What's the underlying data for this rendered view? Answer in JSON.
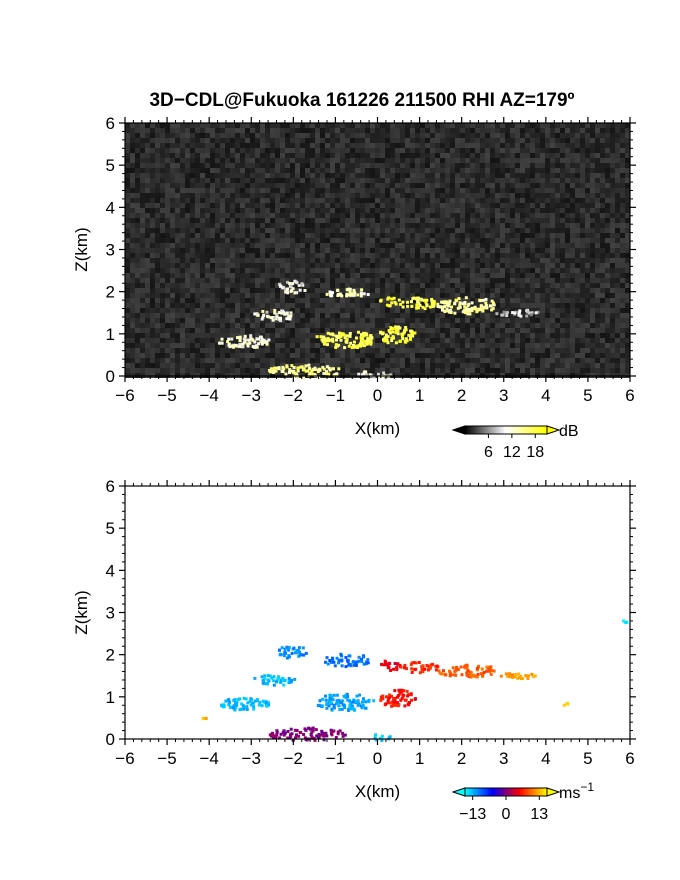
{
  "title": "3D−CDL@Fukuoka 161226 211500 RHI AZ=179º",
  "chart_data": [
    {
      "type": "heatmap",
      "name": "backscatter",
      "xlabel": "X(km)",
      "ylabel": "Z(km)",
      "xlim": [
        -6,
        6
      ],
      "ylim": [
        0,
        6
      ],
      "xticks": [
        "−6",
        "−5",
        "−4",
        "−3",
        "−2",
        "−1",
        "0",
        "1",
        "2",
        "3",
        "4",
        "5",
        "6"
      ],
      "yticks": [
        "0",
        "1",
        "2",
        "3",
        "4",
        "5",
        "6"
      ],
      "background_color": "#262626",
      "colorbar": {
        "unit": "dB",
        "ticks": [
          "6",
          "12",
          "18"
        ],
        "tick_values": [
          6,
          12,
          18
        ],
        "range": [
          0,
          21
        ],
        "colors": [
          "#000000",
          "#ffffff",
          "#ffff00"
        ]
      },
      "echoes": [
        {
          "x": [
            -2.4,
            -1.7
          ],
          "z": [
            2.0,
            2.3
          ],
          "level": 10
        },
        {
          "x": [
            -1.3,
            -0.2
          ],
          "z": [
            1.9,
            2.1
          ],
          "level": 13
        },
        {
          "x": [
            0.0,
            0.5
          ],
          "z": [
            1.7,
            1.9
          ],
          "level": 19
        },
        {
          "x": [
            0.5,
            1.4
          ],
          "z": [
            1.6,
            1.9
          ],
          "level": 17
        },
        {
          "x": [
            1.4,
            2.8
          ],
          "z": [
            1.5,
            1.9
          ],
          "level": 14
        },
        {
          "x": [
            2.8,
            3.8
          ],
          "z": [
            1.45,
            1.6
          ],
          "level": 8
        },
        {
          "x": [
            -3.0,
            -2.0
          ],
          "z": [
            1.3,
            1.6
          ],
          "level": 11
        },
        {
          "x": [
            -3.8,
            -2.6
          ],
          "z": [
            0.7,
            1.0
          ],
          "level": 12
        },
        {
          "x": [
            -1.5,
            -0.1
          ],
          "z": [
            0.7,
            1.1
          ],
          "level": 17
        },
        {
          "x": [
            0.0,
            0.9
          ],
          "z": [
            0.8,
            1.2
          ],
          "level": 18
        },
        {
          "x": [
            -2.6,
            -0.8
          ],
          "z": [
            0.0,
            0.3
          ],
          "level": 15
        },
        {
          "x": [
            -0.5,
            0.3
          ],
          "z": [
            0.0,
            0.15
          ],
          "level": 10
        }
      ]
    },
    {
      "type": "heatmap",
      "name": "doppler-velocity",
      "xlabel": "X(km)",
      "ylabel": "Z(km)",
      "xlim": [
        -6,
        6
      ],
      "ylim": [
        0,
        6
      ],
      "xticks": [
        "−6",
        "−5",
        "−4",
        "−3",
        "−2",
        "−1",
        "0",
        "1",
        "2",
        "3",
        "4",
        "5",
        "6"
      ],
      "yticks": [
        "0",
        "1",
        "2",
        "3",
        "4",
        "5",
        "6"
      ],
      "background_color": "#ffffff",
      "colorbar": {
        "unit": "ms",
        "unit_exponent": "−1",
        "ticks": [
          "−13",
          "0",
          "13"
        ],
        "tick_values": [
          -13,
          0,
          13
        ],
        "range": [
          -16,
          16
        ],
        "colors": [
          "#00ffff",
          "#0000ff",
          "#ff0000",
          "#ffff00"
        ]
      },
      "echoes": [
        {
          "x": [
            -2.4,
            -1.7
          ],
          "z": [
            1.95,
            2.25
          ],
          "velocity": -11
        },
        {
          "x": [
            -1.3,
            -0.2
          ],
          "z": [
            1.75,
            2.05
          ],
          "velocity": -10
        },
        {
          "x": [
            0.0,
            0.5
          ],
          "z": [
            1.65,
            1.9
          ],
          "velocity": 4
        },
        {
          "x": [
            0.5,
            1.4
          ],
          "z": [
            1.6,
            1.85
          ],
          "velocity": 7
        },
        {
          "x": [
            1.4,
            2.8
          ],
          "z": [
            1.5,
            1.8
          ],
          "velocity": 9
        },
        {
          "x": [
            2.8,
            3.8
          ],
          "z": [
            1.45,
            1.6
          ],
          "velocity": 12
        },
        {
          "x": [
            -3.0,
            -2.0
          ],
          "z": [
            1.3,
            1.55
          ],
          "velocity": -13
        },
        {
          "x": [
            -3.8,
            -2.6
          ],
          "z": [
            0.7,
            1.0
          ],
          "velocity": -13
        },
        {
          "x": [
            -1.5,
            -0.1
          ],
          "z": [
            0.7,
            1.1
          ],
          "velocity": -12
        },
        {
          "x": [
            0.0,
            0.9
          ],
          "z": [
            0.8,
            1.2
          ],
          "velocity": 6
        },
        {
          "x": [
            -2.6,
            -0.8
          ],
          "z": [
            0.0,
            0.3
          ],
          "velocity": 0
        },
        {
          "x": [
            -0.2,
            0.3
          ],
          "z": [
            0.0,
            0.15
          ],
          "velocity": -14
        },
        {
          "x": [
            5.8,
            5.9
          ],
          "z": [
            2.8,
            2.85
          ],
          "velocity": -14
        },
        {
          "x": [
            4.4,
            4.5
          ],
          "z": [
            0.8,
            0.9
          ],
          "velocity": 13
        },
        {
          "x": [
            -4.2,
            -4.1
          ],
          "z": [
            0.45,
            0.55
          ],
          "velocity": 13
        }
      ]
    }
  ]
}
